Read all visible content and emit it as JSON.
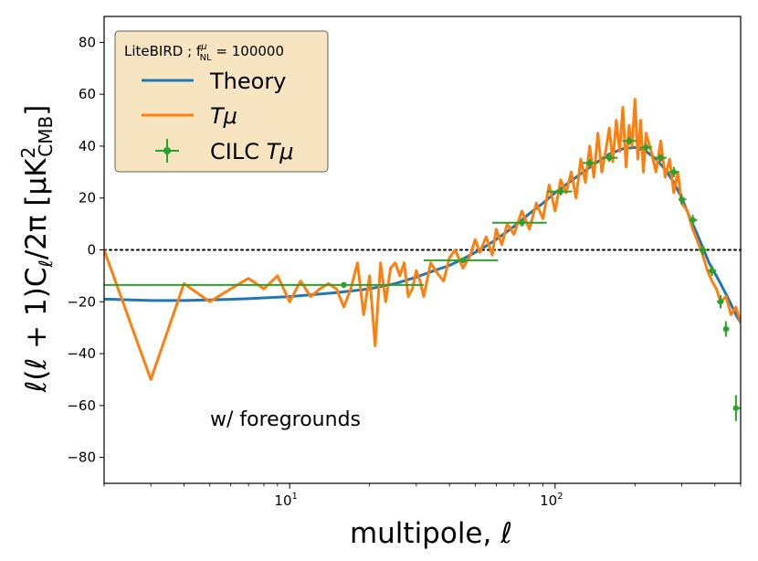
{
  "chart_data": {
    "type": "line",
    "xscale": "log",
    "xlim": [
      2,
      500
    ],
    "ylim": [
      -90,
      90
    ],
    "xlabel": "multipole, ℓ",
    "ylabel": "ℓ(ℓ + 1)C_ℓ/2π [μK²_CMB]",
    "ylabel_parts": {
      "main": "ℓ(ℓ + 1)C",
      "sub1": "ℓ",
      "mid": "/2π [μK",
      "sup": "2",
      "sub2": "CMB",
      "end": "]"
    },
    "yticks": [
      -80,
      -60,
      -40,
      -20,
      0,
      20,
      40,
      60,
      80
    ],
    "yticklabels": [
      "−80",
      "−60",
      "−40",
      "−20",
      "0",
      "20",
      "40",
      "60",
      "80"
    ],
    "xticks": [
      10,
      100
    ],
    "xticklabels": {
      "base": "10",
      "exps": [
        "1",
        "2"
      ]
    },
    "annotation": "w/ foregrounds",
    "zero_line": {
      "y": 0,
      "style": "dotted",
      "color": "#000000"
    },
    "legend": {
      "title": "LiteBIRD ; f",
      "title_sup": "μ",
      "title_sub": "NL",
      "title_value": " = 100000",
      "placement": "upper-left",
      "entries": [
        {
          "label": "Theory",
          "color": "#1f77b4",
          "kind": "line"
        },
        {
          "label": "Tμ",
          "label_italic": true,
          "color": "#ff7f0e",
          "kind": "line"
        },
        {
          "label": "CILC ",
          "label_suffix": "Tμ",
          "color": "#2ca02c",
          "kind": "errorbar"
        }
      ]
    },
    "series": [
      {
        "name": "Theory",
        "color": "#1f77b4",
        "x": [
          2,
          3,
          4,
          5,
          7,
          10,
          15,
          20,
          25,
          30,
          35,
          40,
          45,
          50,
          55,
          60,
          70,
          80,
          90,
          100,
          120,
          140,
          160,
          180,
          200,
          220,
          240,
          260,
          280,
          300,
          320,
          340,
          360,
          380,
          400,
          420,
          440,
          460,
          480,
          500
        ],
        "y": [
          -19,
          -19.5,
          -19.5,
          -19.3,
          -18.8,
          -18,
          -16.5,
          -15,
          -13,
          -10.5,
          -8,
          -6,
          -3.5,
          -1,
          1.5,
          4,
          9,
          14,
          18,
          22,
          28,
          33,
          37,
          39,
          39.5,
          38,
          35,
          31,
          26,
          20,
          13,
          7,
          1,
          -5,
          -9,
          -13,
          -17,
          -21,
          -25,
          -28
        ]
      },
      {
        "name": "Tμ",
        "color": "#ff7f0e",
        "x": [
          2,
          3,
          4,
          5,
          6,
          7,
          8,
          9,
          10,
          11,
          12,
          13,
          14,
          15,
          16,
          17,
          18,
          19,
          20,
          21,
          22,
          23,
          24,
          25,
          26,
          27,
          28,
          29,
          30,
          31,
          32,
          34,
          36,
          38,
          40,
          42,
          45,
          48,
          50,
          52,
          55,
          58,
          60,
          63,
          66,
          70,
          75,
          80,
          85,
          90,
          95,
          100,
          105,
          110,
          115,
          120,
          125,
          130,
          135,
          140,
          145,
          150,
          155,
          160,
          165,
          170,
          175,
          180,
          185,
          190,
          195,
          200,
          205,
          210,
          215,
          220,
          230,
          240,
          250,
          260,
          270,
          280,
          290,
          300,
          315,
          330,
          345,
          360,
          375,
          390,
          405,
          420,
          440,
          460,
          480,
          500
        ],
        "y": [
          0,
          -50,
          -13,
          -20,
          -15,
          -11,
          -15,
          -10,
          -20,
          -12,
          -18,
          -15,
          -13,
          -15,
          -22,
          -15,
          -5,
          -25,
          -10,
          -37,
          -5,
          -20,
          -7,
          -5,
          -10,
          -5,
          -18,
          -15,
          -8,
          -12,
          -18,
          -5,
          -9,
          -12,
          -3,
          0,
          -7,
          -2,
          4,
          -1,
          5,
          -2,
          8,
          2,
          10,
          6,
          15,
          8,
          18,
          12,
          25,
          15,
          27,
          22,
          30,
          20,
          35,
          26,
          40,
          28,
          45,
          30,
          38,
          47,
          34,
          50,
          38,
          55,
          32,
          48,
          40,
          58,
          35,
          50,
          30,
          45,
          38,
          30,
          42,
          28,
          35,
          22,
          30,
          18,
          15,
          8,
          3,
          -2,
          -8,
          -12,
          -15,
          -20,
          -18,
          -25,
          -22,
          -28
        ]
      },
      {
        "name": "CILC Tμ",
        "color": "#2ca02c",
        "x": [
          16,
          45,
          75,
          105,
          135,
          160,
          190,
          220,
          250,
          280,
          300,
          330,
          360,
          390,
          420,
          440,
          480
        ],
        "y": [
          -13.5,
          -4,
          10.5,
          22.5,
          33.5,
          35.5,
          42,
          39.5,
          35.5,
          30,
          19.5,
          11.5,
          0,
          -8,
          -20,
          -30.5,
          -61
        ],
        "xerr_lo": [
          14,
          13,
          17,
          12,
          8,
          10,
          11,
          11,
          13,
          13,
          8,
          10,
          12,
          13,
          13,
          8,
          12
        ],
        "xerr_hi": [
          16,
          16,
          18,
          11,
          10,
          12,
          12,
          12,
          13,
          13,
          12,
          13,
          14,
          15,
          12,
          13,
          20
        ],
        "yerr": [
          1,
          1,
          1.5,
          1.5,
          1.5,
          1.5,
          1.5,
          1.5,
          1.5,
          2,
          2,
          2,
          2,
          2,
          2.5,
          3,
          5
        ]
      }
    ]
  }
}
